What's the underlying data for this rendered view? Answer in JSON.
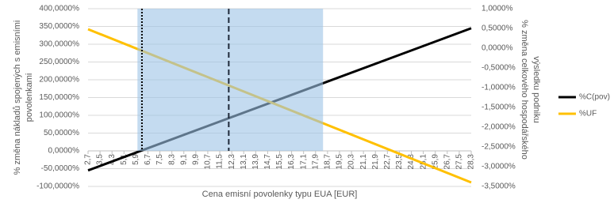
{
  "chart_data": {
    "type": "line",
    "xlabel": "Cena emisní povolenky typu EUA [EUR]",
    "ylabel": [
      "% změna nákladů spojených s emisními",
      "povolenkami"
    ],
    "y2label": [
      "% změna celkového hospodářského",
      "výsledku podniku"
    ],
    "x": [
      2.7,
      28.3
    ],
    "series": [
      {
        "name": "%C(pov)",
        "color": "#000000",
        "values": [
          -55,
          345
        ]
      },
      {
        "name": "%UF",
        "color": "#ffc000",
        "axis": "y2",
        "values": [
          0.48,
          -3.4
        ]
      }
    ],
    "xlim": [
      2.7,
      28.3
    ],
    "xticks": [
      {
        "value": 2.7,
        "label": "2,7"
      },
      {
        "value": 3.5,
        "label": "3,5"
      },
      {
        "value": 4.3,
        "label": "4,3"
      },
      {
        "value": 5.1,
        "label": "5,1"
      },
      {
        "value": 5.9,
        "label": "5,9"
      },
      {
        "value": 6.7,
        "label": "6,7"
      },
      {
        "value": 7.5,
        "label": "7,5"
      },
      {
        "value": 8.3,
        "label": "8,3"
      },
      {
        "value": 9.1,
        "label": "9,1"
      },
      {
        "value": 9.9,
        "label": "9,9"
      },
      {
        "value": 10.7,
        "label": "10,7"
      },
      {
        "value": 11.5,
        "label": "11,5"
      },
      {
        "value": 12.3,
        "label": "12,3"
      },
      {
        "value": 13.1,
        "label": "13,1"
      },
      {
        "value": 13.9,
        "label": "13,9"
      },
      {
        "value": 14.7,
        "label": "14,7"
      },
      {
        "value": 15.5,
        "label": "15,5"
      },
      {
        "value": 16.3,
        "label": "16,3"
      },
      {
        "value": 17.1,
        "label": "17,1"
      },
      {
        "value": 17.9,
        "label": "17,9"
      },
      {
        "value": 18.7,
        "label": "18,7"
      },
      {
        "value": 19.5,
        "label": "19,5"
      },
      {
        "value": 20.3,
        "label": "20,3"
      },
      {
        "value": 21.1,
        "label": "21,1"
      },
      {
        "value": 21.9,
        "label": "21,9"
      },
      {
        "value": 22.7,
        "label": "22,7"
      },
      {
        "value": 23.5,
        "label": "23,5"
      },
      {
        "value": 24.3,
        "label": "24,3"
      },
      {
        "value": 25.1,
        "label": "25,1"
      },
      {
        "value": 25.9,
        "label": "25,9"
      },
      {
        "value": 26.7,
        "label": "26,7"
      },
      {
        "value": 27.5,
        "label": "27,5"
      },
      {
        "value": 28.3,
        "label": "28,3"
      }
    ],
    "ylim": [
      -100,
      400
    ],
    "yticks": [
      {
        "value": 400,
        "label": "400,0000%"
      },
      {
        "value": 350,
        "label": "350,0000%"
      },
      {
        "value": 300,
        "label": "300,0000%"
      },
      {
        "value": 250,
        "label": "250,0000%"
      },
      {
        "value": 200,
        "label": "200,0000%"
      },
      {
        "value": 150,
        "label": "150,0000%"
      },
      {
        "value": 100,
        "label": "100,0000%"
      },
      {
        "value": 50,
        "label": "50,0000%"
      },
      {
        "value": 0,
        "label": "0,0000%"
      },
      {
        "value": -50,
        "label": "-50,0000%"
      },
      {
        "value": -100,
        "label": "-100,0000%"
      }
    ],
    "y2lim": [
      -3.5,
      1.0
    ],
    "y2ticks": [
      {
        "value": 1.0,
        "label": "1,0000%"
      },
      {
        "value": 0.5,
        "label": "0,5000%"
      },
      {
        "value": 0,
        "label": "0,0000%"
      },
      {
        "value": -0.5,
        "label": "-0,5000%"
      },
      {
        "value": -1.0,
        "label": "-1,0000%"
      },
      {
        "value": -1.5,
        "label": "-1,5000%"
      },
      {
        "value": -2.0,
        "label": "-2,0000%"
      },
      {
        "value": -2.5,
        "label": "-2,5000%"
      },
      {
        "value": -3.0,
        "label": "-3,0000%"
      },
      {
        "value": -3.5,
        "label": "-3,5000%"
      }
    ],
    "grid": true,
    "shaded_range": [
      6.0,
      18.4
    ],
    "dotted_line_x": 6.3,
    "dashed_line_x": 12.1,
    "legend": "right"
  }
}
